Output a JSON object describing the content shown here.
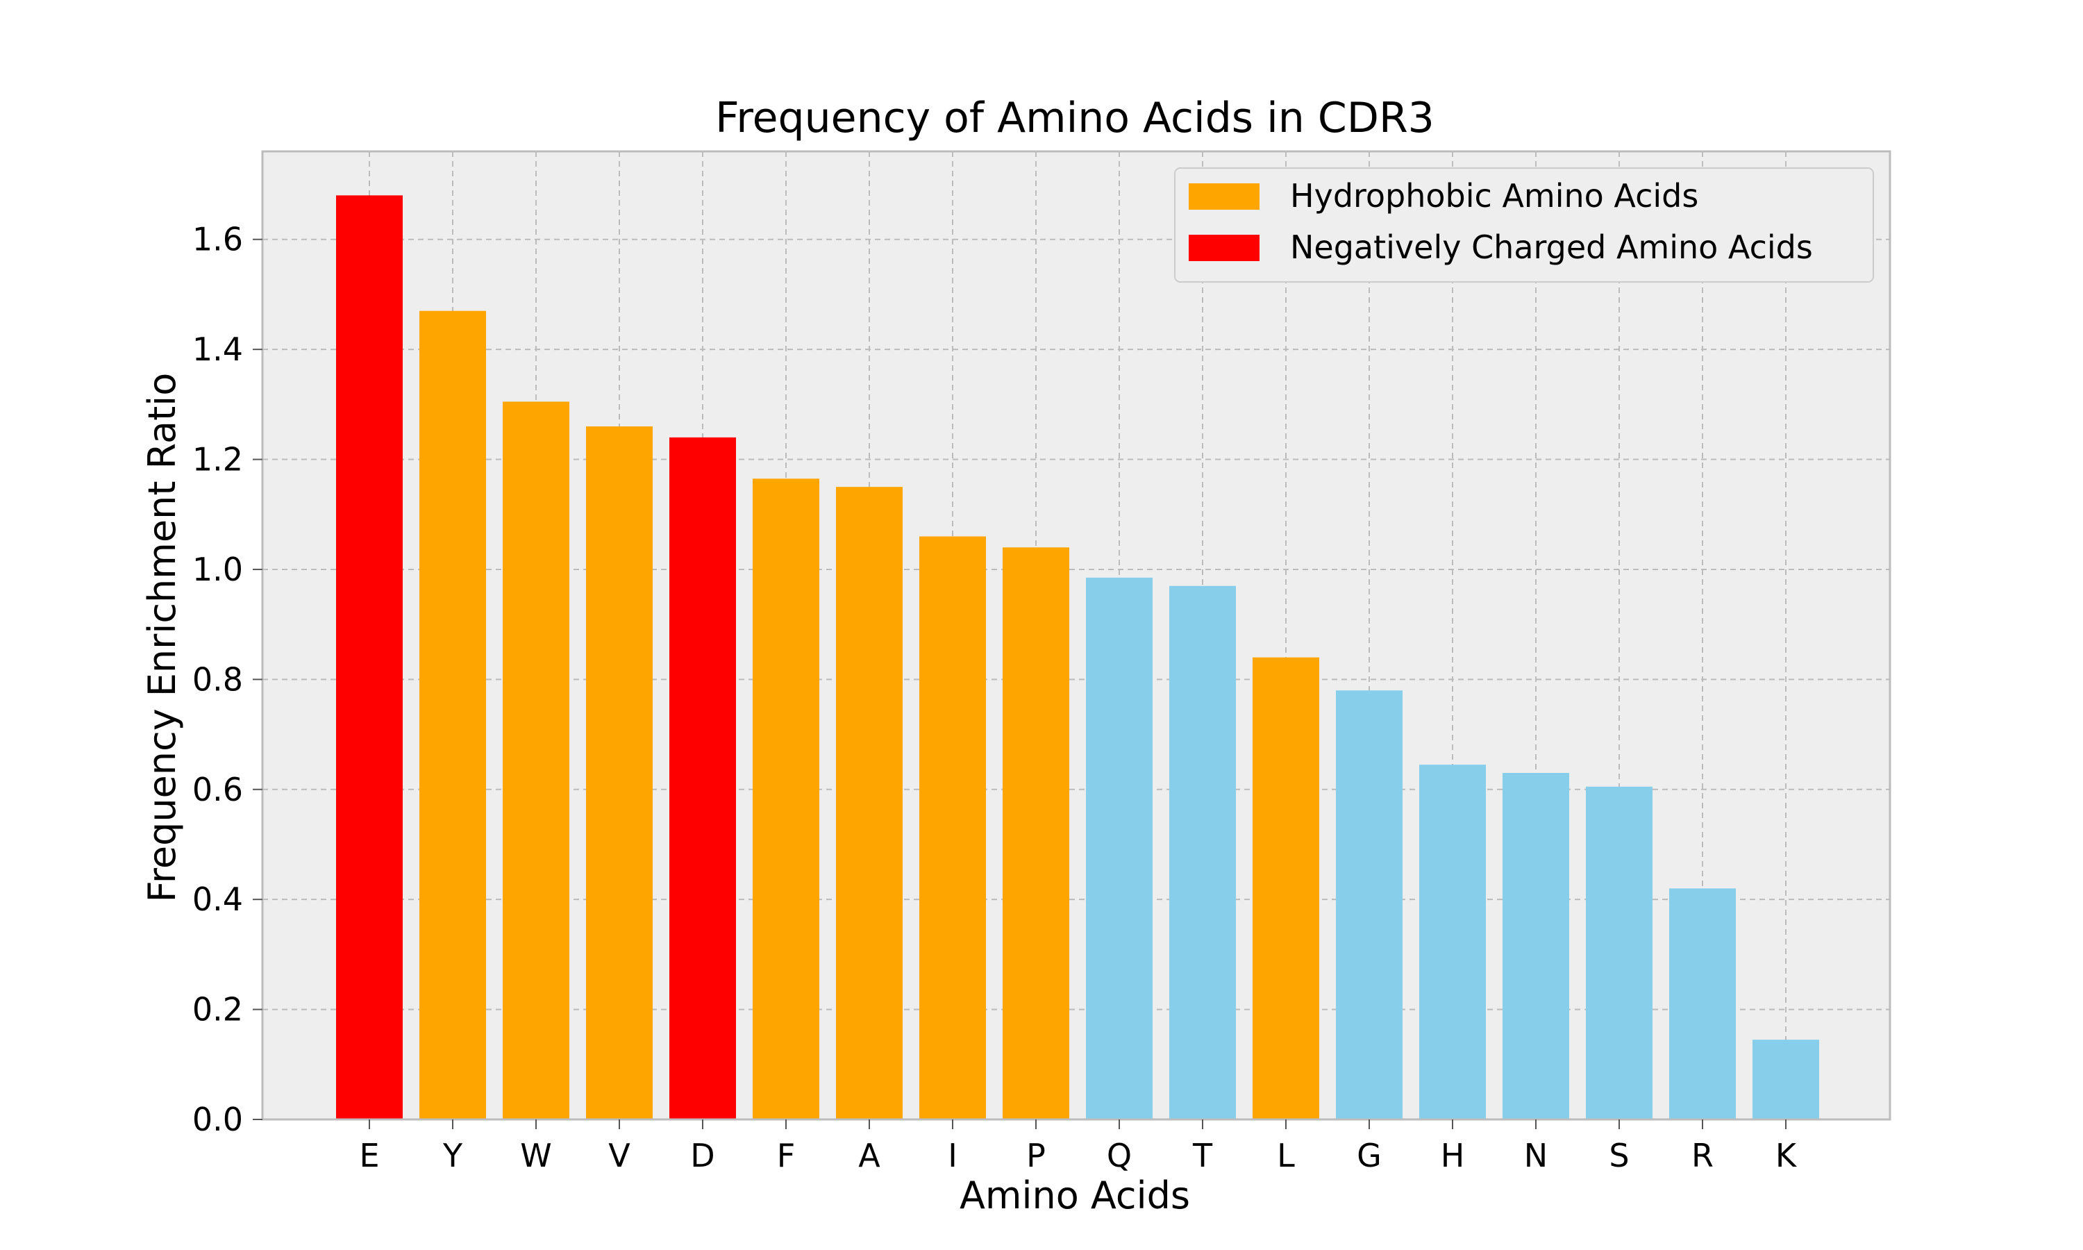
{
  "chart_data": {
    "type": "bar",
    "title": "Frequency of Amino Acids in CDR3",
    "xlabel": "Amino Acids",
    "ylabel": "Frequency Enrichment Ratio",
    "categories": [
      "E",
      "Y",
      "W",
      "V",
      "D",
      "F",
      "A",
      "I",
      "P",
      "Q",
      "T",
      "L",
      "G",
      "H",
      "N",
      "S",
      "R",
      "K"
    ],
    "values": [
      1.68,
      1.47,
      1.305,
      1.26,
      1.24,
      1.165,
      1.15,
      1.06,
      1.04,
      0.985,
      0.97,
      0.84,
      0.78,
      0.645,
      0.63,
      0.605,
      0.42,
      0.145
    ],
    "groups": [
      "negative",
      "hydrophobic",
      "hydrophobic",
      "hydrophobic",
      "negative",
      "hydrophobic",
      "hydrophobic",
      "hydrophobic",
      "hydrophobic",
      "other",
      "other",
      "hydrophobic",
      "other",
      "other",
      "other",
      "other",
      "other",
      "other"
    ],
    "colors": {
      "hydrophobic": "#ffa500",
      "negative": "#ff0000",
      "other": "#87ceeb",
      "plot_background": "#eeeeee",
      "grid": "#bbbbbb",
      "frame": "#bcbcbc"
    },
    "ylim": [
      0,
      1.76
    ],
    "yticks": [
      0.0,
      0.2,
      0.4,
      0.6,
      0.8,
      1.0,
      1.2,
      1.4,
      1.6
    ],
    "grid": true,
    "legend": {
      "position": "top-right",
      "entries": [
        {
          "label": "Hydrophobic Amino Acids",
          "group": "hydrophobic"
        },
        {
          "label": "Negatively Charged Amino Acids",
          "group": "negative"
        }
      ]
    }
  }
}
